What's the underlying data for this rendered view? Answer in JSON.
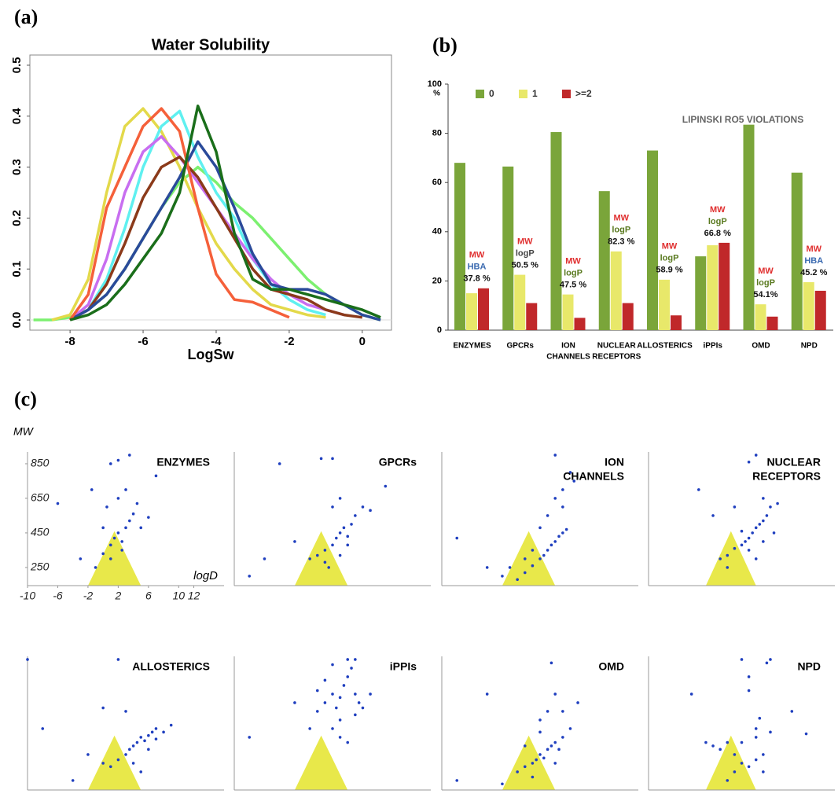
{
  "panel_labels": [
    "(a)",
    "(b)",
    "(c)"
  ],
  "chart_data": [
    {
      "type": "line",
      "title": "Water Solubility",
      "xlabel": "LogSw",
      "x": [
        -9,
        -8.5,
        -8,
        -7.5,
        -7,
        -6.5,
        -6,
        -5.5,
        -5,
        -4.5,
        -4,
        -3.5,
        -3,
        -2.5,
        -2,
        -1.5,
        -1,
        -0.5,
        0,
        0.5
      ],
      "xlim": [
        -9.1,
        0.8
      ],
      "xticks": [
        -8,
        -6,
        -4,
        -2,
        0
      ],
      "ylim": [
        -0.02,
        0.52
      ],
      "yticks": [
        {
          "value": 0,
          "label": "0.0"
        },
        0.1,
        0.2,
        0.3,
        0.4,
        0.5
      ],
      "series": [
        {
          "color": "#7cf070",
          "values": [
            0.0,
            0.0,
            0.005,
            0.02,
            0.05,
            0.1,
            0.16,
            0.22,
            0.27,
            0.3,
            0.27,
            0.23,
            0.2,
            0.16,
            0.12,
            0.08,
            0.05,
            0.03,
            0.01,
            0.0
          ]
        },
        {
          "color": "#e3d94a",
          "values": [
            null,
            0.0,
            0.01,
            0.08,
            0.25,
            0.38,
            0.415,
            0.37,
            0.3,
            0.22,
            0.15,
            0.1,
            0.06,
            0.03,
            0.02,
            0.01,
            0.005,
            null,
            null,
            null
          ]
        },
        {
          "color": "#5ff0f0",
          "values": [
            null,
            null,
            0.0,
            0.02,
            0.08,
            0.18,
            0.3,
            0.38,
            0.41,
            0.32,
            0.25,
            0.2,
            0.12,
            0.07,
            0.04,
            0.02,
            0.01,
            null,
            null,
            null
          ]
        },
        {
          "color": "#c86ef0",
          "values": [
            null,
            null,
            0.0,
            0.03,
            0.12,
            0.25,
            0.33,
            0.36,
            0.32,
            0.27,
            0.22,
            0.17,
            0.12,
            0.08,
            0.05,
            0.03,
            0.02,
            0.01,
            null,
            null
          ]
        },
        {
          "color": "#8b3a1a",
          "values": [
            null,
            null,
            0.0,
            0.02,
            0.07,
            0.15,
            0.24,
            0.3,
            0.32,
            0.28,
            0.22,
            0.16,
            0.1,
            0.06,
            0.05,
            0.04,
            0.02,
            0.01,
            0.005,
            null
          ]
        },
        {
          "color": "#2a4a9a",
          "values": [
            null,
            null,
            0.0,
            0.02,
            0.05,
            0.1,
            0.16,
            0.22,
            0.28,
            0.35,
            0.3,
            0.22,
            0.13,
            0.07,
            0.06,
            0.06,
            0.05,
            0.03,
            0.01,
            0.0
          ]
        },
        {
          "color": "#f5603a",
          "values": [
            null,
            null,
            0.0,
            0.05,
            0.22,
            0.3,
            0.38,
            0.415,
            0.37,
            0.22,
            0.09,
            0.04,
            0.035,
            0.02,
            0.005,
            null,
            null,
            null,
            null,
            null
          ]
        },
        {
          "color": "#1a6e1a",
          "values": [
            null,
            null,
            0.0,
            0.01,
            0.03,
            0.07,
            0.12,
            0.17,
            0.25,
            0.42,
            0.33,
            0.17,
            0.08,
            0.06,
            0.06,
            0.05,
            0.04,
            0.03,
            0.02,
            0.005
          ]
        }
      ]
    },
    {
      "type": "bar",
      "title": "LIPINSKI RO5 VIOLATIONS",
      "yunit": "%",
      "categories": [
        [
          "ENZYMES"
        ],
        [
          "GPCRs"
        ],
        [
          "ION",
          "CHANNELS"
        ],
        [
          "NUCLEAR",
          "RECEPTORS"
        ],
        [
          "ALLOSTERICS"
        ],
        [
          "iPPIs"
        ],
        [
          "OMD"
        ],
        [
          "NPD"
        ]
      ],
      "ylim": [
        0,
        100
      ],
      "yticks": [
        0,
        20,
        40,
        60,
        80,
        100
      ],
      "series": [
        {
          "name": "0",
          "color": "#7aa53a",
          "values": [
            68,
            66.5,
            80.5,
            56.5,
            73,
            30,
            83.5,
            64
          ]
        },
        {
          "name": "1",
          "color": "#e8e86a",
          "values": [
            15,
            22.5,
            14.5,
            32,
            20.5,
            34.5,
            10.5,
            19.5
          ]
        },
        {
          "name": ">=2",
          "color": "#c0282a",
          "values": [
            17,
            11,
            5,
            11,
            6,
            35.5,
            5.5,
            16
          ]
        }
      ],
      "annotations": [
        [
          {
            "text": "MW",
            "color": "#e03030"
          },
          {
            "text": "HBA",
            "color": "#3a6ab0"
          },
          {
            "text": "37.8 %",
            "color": "#111111"
          }
        ],
        [
          {
            "text": "MW",
            "color": "#e03030"
          },
          {
            "text": "logP",
            "color": "#444444"
          },
          {
            "text": "50.5 %",
            "color": "#111111"
          }
        ],
        [
          {
            "text": "MW",
            "color": "#e03030"
          },
          {
            "text": "logP",
            "color": "#5a7a20"
          },
          {
            "text": "47.5 %",
            "color": "#111111"
          }
        ],
        [
          {
            "text": "MW",
            "color": "#e03030"
          },
          {
            "text": "logP",
            "color": "#5a7a20"
          },
          {
            "text": "82.3 %",
            "color": "#111111"
          }
        ],
        [
          {
            "text": "MW",
            "color": "#e03030"
          },
          {
            "text": "logP",
            "color": "#5a7a20"
          },
          {
            "text": "58.9 %",
            "color": "#111111"
          }
        ],
        [
          {
            "text": "MW",
            "color": "#e03030"
          },
          {
            "text": "logP",
            "color": "#5a7a20"
          },
          {
            "text": "66.8 %",
            "color": "#111111"
          }
        ],
        [
          {
            "text": "MW",
            "color": "#e03030"
          },
          {
            "text": "logP",
            "color": "#5a7a20"
          },
          {
            "text": "54.1%",
            "color": "#111111"
          }
        ],
        [
          {
            "text": "MW",
            "color": "#e03030"
          },
          {
            "text": "HBA",
            "color": "#3a6ab0"
          },
          {
            "text": "45.2 %",
            "color": "#111111"
          }
        ]
      ]
    },
    {
      "type": "scatter",
      "title": [
        "ENZYMES"
      ],
      "xlabel": "logD",
      "ylabel": "MW",
      "color": "#1f3fbf",
      "region_color": "#e8e84a",
      "xlim": [
        -10,
        16
      ],
      "ylim": [
        145,
        918
      ],
      "xticks": [
        -10,
        -6,
        -2,
        2,
        6,
        10,
        12
      ],
      "yticks": [
        850,
        650,
        450,
        250
      ],
      "region_x": [
        -2,
        1.5,
        5
      ],
      "region_y": [
        145,
        460,
        145
      ],
      "x": [
        -3,
        -1,
        0,
        1,
        1.5,
        2,
        2.5,
        3,
        3.5,
        4,
        0.5,
        2,
        3,
        4.5,
        5,
        1,
        2.5,
        6,
        -1.5,
        7,
        1,
        3.5,
        2,
        0,
        -6
      ],
      "y": [
        300,
        250,
        330,
        380,
        420,
        450,
        400,
        480,
        520,
        560,
        600,
        650,
        700,
        620,
        480,
        300,
        350,
        540,
        700,
        780,
        850,
        900,
        870,
        480,
        620
      ]
    },
    {
      "type": "scatter",
      "title": [
        "GPCRs"
      ],
      "color": "#1f3fbf",
      "region_color": "#e8e84a",
      "xlim": [
        -10,
        16
      ],
      "ylim": [
        145,
        918
      ],
      "region_x": [
        -2,
        1.5,
        5
      ],
      "region_y": [
        145,
        460,
        145
      ],
      "x": [
        -4,
        -2,
        0,
        1,
        2,
        3,
        3.5,
        4,
        4.5,
        5,
        5.5,
        6,
        3,
        4,
        2.5,
        7,
        8,
        10,
        -6,
        -8,
        1.5,
        3,
        5,
        4,
        2
      ],
      "y": [
        850,
        400,
        300,
        320,
        350,
        380,
        420,
        450,
        480,
        430,
        500,
        550,
        600,
        650,
        250,
        600,
        580,
        720,
        300,
        200,
        880,
        880,
        380,
        320,
        280
      ]
    },
    {
      "type": "scatter",
      "title": [
        "ION",
        "CHANNELS"
      ],
      "color": "#1f3fbf",
      "region_color": "#e8e84a",
      "xlim": [
        -10,
        16
      ],
      "ylim": [
        145,
        918
      ],
      "region_x": [
        -2,
        1.5,
        5
      ],
      "region_y": [
        145,
        460,
        145
      ],
      "x": [
        -8,
        -4,
        -2,
        0,
        1,
        2,
        3,
        3.5,
        4,
        4.5,
        5,
        5.5,
        6,
        6.5,
        4,
        5,
        6,
        7,
        2,
        3,
        5,
        1,
        -1,
        6,
        7.5
      ],
      "y": [
        420,
        250,
        200,
        180,
        220,
        260,
        300,
        320,
        350,
        380,
        400,
        430,
        450,
        470,
        550,
        650,
        700,
        800,
        350,
        480,
        900,
        300,
        250,
        600,
        750
      ]
    },
    {
      "type": "scatter",
      "title": [
        "NUCLEAR",
        "RECEPTORS"
      ],
      "color": "#1f3fbf",
      "region_color": "#e8e84a",
      "xlim": [
        -10,
        16
      ],
      "ylim": [
        145,
        918
      ],
      "region_x": [
        -2,
        1.5,
        5
      ],
      "region_y": [
        145,
        460,
        145
      ],
      "x": [
        -3,
        -1,
        0,
        1,
        2,
        3,
        3.5,
        4,
        4.5,
        5,
        5.5,
        6,
        6.5,
        7,
        8,
        3,
        4,
        5,
        6,
        2,
        5,
        4,
        7.5,
        6,
        1
      ],
      "y": [
        700,
        550,
        300,
        320,
        360,
        380,
        400,
        420,
        450,
        480,
        500,
        520,
        550,
        600,
        620,
        460,
        350,
        300,
        400,
        600,
        900,
        860,
        450,
        650,
        250
      ]
    },
    {
      "type": "scatter",
      "title": [
        "ALLOSTERICS"
      ],
      "color": "#1f3fbf",
      "region_color": "#e8e84a",
      "xlim": [
        -10,
        16
      ],
      "ylim": [
        145,
        918
      ],
      "region_x": [
        -2,
        1.5,
        5
      ],
      "region_y": [
        145,
        460,
        145
      ],
      "x": [
        -10,
        -4,
        -2,
        0,
        1,
        2,
        3,
        3.5,
        4,
        4.5,
        5,
        5.5,
        6,
        6.5,
        7,
        8,
        9,
        4,
        5,
        6,
        3,
        2,
        -8,
        7,
        0
      ],
      "y": [
        900,
        200,
        350,
        300,
        280,
        320,
        350,
        380,
        400,
        420,
        450,
        430,
        460,
        480,
        500,
        480,
        520,
        300,
        250,
        380,
        600,
        900,
        500,
        440,
        620
      ]
    },
    {
      "type": "scatter",
      "title": [
        "iPPIs"
      ],
      "color": "#1f3fbf",
      "region_color": "#e8e84a",
      "xlim": [
        -10,
        16
      ],
      "ylim": [
        145,
        918
      ],
      "region_x": [
        -2,
        1.5,
        5
      ],
      "region_y": [
        145,
        460,
        145
      ],
      "x": [
        -8,
        -2,
        0,
        1,
        2,
        3,
        3.5,
        4,
        4.5,
        5,
        5.5,
        6,
        6.5,
        7,
        3,
        4,
        5,
        6,
        2,
        8,
        4,
        5,
        6,
        3,
        1
      ],
      "y": [
        450,
        650,
        500,
        600,
        650,
        700,
        620,
        680,
        750,
        800,
        850,
        700,
        650,
        620,
        500,
        550,
        900,
        900,
        780,
        700,
        450,
        420,
        580,
        870,
        720
      ]
    },
    {
      "type": "scatter",
      "title": [
        "OMD"
      ],
      "color": "#1f3fbf",
      "region_color": "#e8e84a",
      "xlim": [
        -10,
        16
      ],
      "ylim": [
        145,
        918
      ],
      "region_x": [
        -2,
        1.5,
        5
      ],
      "region_y": [
        145,
        460,
        145
      ],
      "x": [
        -8,
        -2,
        0,
        1,
        2,
        2.5,
        3,
        3.5,
        4,
        4.5,
        5,
        5.5,
        6,
        7,
        3,
        4,
        5,
        1,
        2,
        6,
        4.5,
        -4,
        3,
        8,
        5
      ],
      "y": [
        200,
        180,
        250,
        280,
        300,
        320,
        350,
        330,
        380,
        400,
        420,
        380,
        450,
        500,
        550,
        600,
        700,
        400,
        220,
        600,
        880,
        700,
        480,
        650,
        300
      ]
    },
    {
      "type": "scatter",
      "title": [
        "NPD"
      ],
      "color": "#1f3fbf",
      "region_color": "#e8e84a",
      "xlim": [
        -10,
        16
      ],
      "ylim": [
        145,
        918
      ],
      "region_x": [
        -2,
        1.5,
        5
      ],
      "region_y": [
        145,
        460,
        145
      ],
      "x": [
        -4,
        -2,
        -1,
        0,
        1,
        2,
        3,
        4,
        5,
        6,
        5,
        4,
        3,
        6.5,
        7,
        10,
        12,
        5,
        6,
        1,
        2,
        4,
        3,
        5.5,
        7
      ],
      "y": [
        700,
        420,
        400,
        380,
        420,
        350,
        300,
        280,
        320,
        350,
        500,
        800,
        900,
        880,
        900,
        600,
        470,
        450,
        250,
        200,
        250,
        720,
        420,
        560,
        480
      ]
    }
  ]
}
